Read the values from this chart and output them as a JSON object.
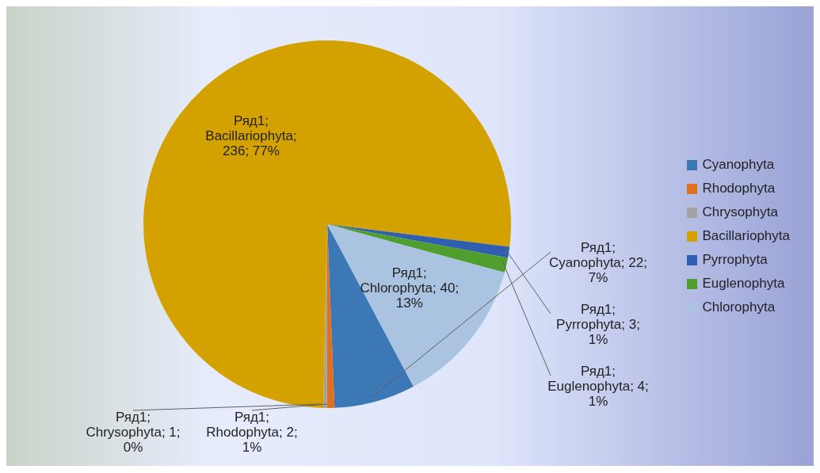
{
  "chart_data": {
    "type": "pie",
    "categories": [
      "Cyanophyta",
      "Rhodophyta",
      "Chrysophyta",
      "Bacillariophyta",
      "Pyrrophyta",
      "Euglenophyta",
      "Chlorophyta"
    ],
    "values": [
      22,
      2,
      1,
      236,
      3,
      4,
      40
    ],
    "colors": [
      "#3b78b5",
      "#e0701e",
      "#a3a3a3",
      "#d4a200",
      "#2f5fae",
      "#4f9e2e",
      "#a9c3e0"
    ],
    "value_labels": [
      "Ряд1; Cyanophyta; 22; 7%",
      "Ряд1; Rhodophyta; 2; 1%",
      "Ряд1; Chrysophyta; 1; 0%",
      "Ряд1; Bacillariophyta; 236; 77%",
      "Ряд1; Pyrrophyta; 3; 1%",
      "Ряд1; Euglenophyta; 4; 1%",
      "Ряд1; Chlorophyta; 40; 13%"
    ],
    "legend": "right"
  }
}
